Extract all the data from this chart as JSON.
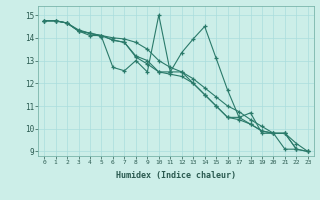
{
  "title": "",
  "xlabel": "Humidex (Indice chaleur)",
  "bg_color": "#cceee8",
  "grid_color": "#aadddd",
  "line_color": "#2a7a6a",
  "xlim": [
    -0.5,
    23.5
  ],
  "ylim": [
    8.8,
    15.4
  ],
  "ytick_vals": [
    9,
    10,
    11,
    12,
    13,
    14,
    15
  ],
  "line1_x": [
    0,
    1,
    2,
    3,
    4,
    5,
    6,
    7,
    8,
    9,
    10,
    11,
    12,
    13,
    14,
    15,
    16,
    17,
    18,
    19,
    20,
    21,
    22,
    23
  ],
  "line1_y": [
    14.75,
    14.75,
    14.65,
    14.3,
    14.2,
    14.1,
    14.0,
    13.95,
    13.8,
    13.5,
    13.0,
    12.7,
    12.5,
    12.2,
    11.8,
    11.4,
    11.0,
    10.75,
    10.4,
    10.1,
    9.8,
    9.8,
    9.35,
    9.0
  ],
  "line2_x": [
    0,
    1,
    2,
    3,
    4,
    5,
    6,
    7,
    8,
    9,
    10,
    11,
    12,
    13,
    14,
    15,
    16,
    17,
    18,
    19,
    20,
    21,
    22,
    23
  ],
  "line2_y": [
    14.75,
    14.75,
    14.65,
    14.3,
    14.1,
    14.1,
    13.9,
    13.8,
    13.2,
    13.0,
    12.5,
    12.5,
    12.5,
    12.0,
    11.5,
    11.0,
    10.5,
    10.5,
    10.2,
    9.9,
    9.8,
    9.8,
    9.1,
    9.0
  ],
  "line3_x": [
    0,
    1,
    2,
    3,
    4,
    5,
    6,
    7,
    8,
    9,
    10,
    11,
    12,
    13,
    14,
    15,
    16,
    17,
    18,
    19,
    20,
    21,
    22,
    23
  ],
  "line3_y": [
    14.75,
    14.75,
    14.65,
    14.35,
    14.2,
    14.1,
    13.9,
    13.8,
    13.15,
    12.85,
    12.5,
    12.4,
    12.3,
    12.0,
    11.5,
    11.0,
    10.5,
    10.4,
    10.2,
    9.9,
    9.8,
    9.8,
    9.1,
    9.0
  ],
  "line4_x": [
    0,
    1,
    2,
    3,
    4,
    5,
    6,
    7,
    8,
    9,
    10,
    11,
    12,
    13,
    14,
    15,
    16,
    17,
    18,
    19,
    20,
    21,
    22,
    23
  ],
  "line4_y": [
    14.75,
    14.75,
    14.65,
    14.3,
    14.2,
    14.05,
    12.7,
    12.55,
    13.0,
    12.5,
    15.0,
    12.5,
    13.35,
    13.95,
    14.5,
    13.1,
    11.7,
    10.5,
    10.7,
    9.8,
    9.8,
    9.1,
    9.1,
    null
  ]
}
